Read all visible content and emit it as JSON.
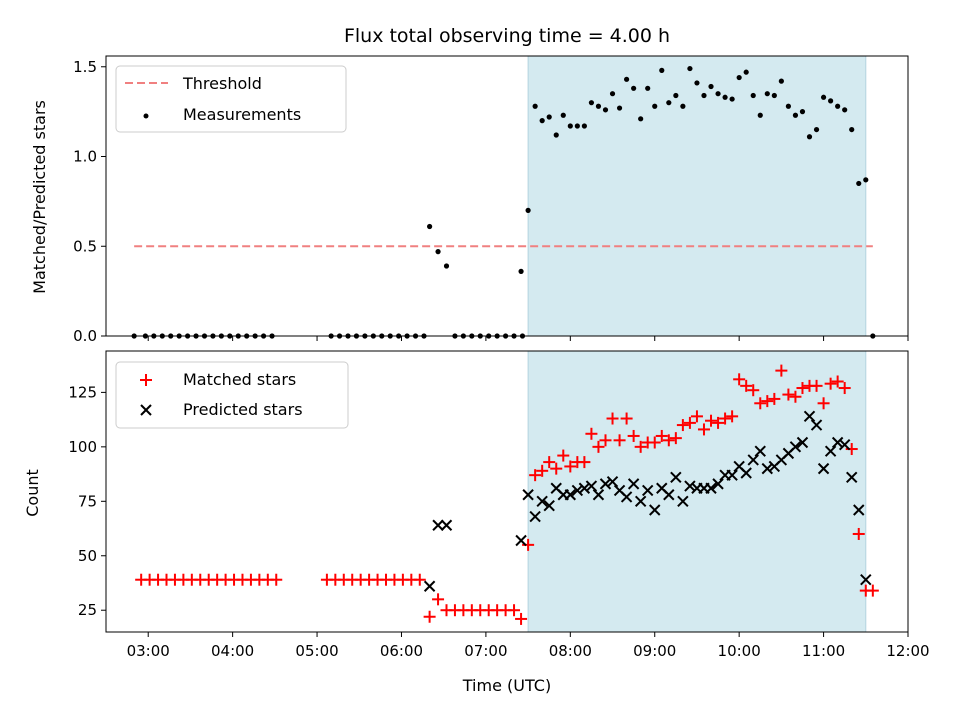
{
  "chart_data": [
    {
      "type": "scatter",
      "title": "Flux total observing time = 4.00 h",
      "ylabel": "Matched/Predicted stars",
      "xlabel": "",
      "xlim": [
        "02:30",
        "12:00"
      ],
      "ylim": [
        0,
        1.56
      ],
      "yticks": [
        "0.0",
        "0.5",
        "1.0",
        "1.5"
      ],
      "legend": "top-left",
      "shaded_span": [
        "07:30",
        "11:30"
      ],
      "colors": {
        "threshold": "#f08080",
        "measurements": "#000000",
        "span": "#d4eaf0"
      },
      "series": [
        {
          "name": "Threshold",
          "kind": "dashed-line",
          "x": [
            "02:50",
            "11:35"
          ],
          "y": [
            0.5,
            0.5
          ]
        },
        {
          "name": "Measurements",
          "kind": "points",
          "points": [
            [
              "02:50",
              0
            ],
            [
              "02:58",
              0
            ],
            [
              "03:04",
              0
            ],
            [
              "03:10",
              0
            ],
            [
              "03:16",
              0
            ],
            [
              "03:22",
              0
            ],
            [
              "03:28",
              0
            ],
            [
              "03:34",
              0
            ],
            [
              "03:40",
              0
            ],
            [
              "03:46",
              0
            ],
            [
              "03:52",
              0
            ],
            [
              "03:58",
              0
            ],
            [
              "04:04",
              0
            ],
            [
              "04:10",
              0
            ],
            [
              "04:16",
              0
            ],
            [
              "04:22",
              0
            ],
            [
              "04:28",
              0
            ],
            [
              "05:10",
              0
            ],
            [
              "05:16",
              0
            ],
            [
              "05:22",
              0
            ],
            [
              "05:28",
              0
            ],
            [
              "05:34",
              0
            ],
            [
              "05:40",
              0
            ],
            [
              "05:46",
              0
            ],
            [
              "05:52",
              0
            ],
            [
              "05:58",
              0
            ],
            [
              "06:04",
              0
            ],
            [
              "06:10",
              0
            ],
            [
              "06:16",
              0
            ],
            [
              "06:20",
              0.61
            ],
            [
              "06:26",
              0.47
            ],
            [
              "06:32",
              0.39
            ],
            [
              "06:38",
              0
            ],
            [
              "06:44",
              0
            ],
            [
              "06:50",
              0
            ],
            [
              "06:56",
              0
            ],
            [
              "07:02",
              0
            ],
            [
              "07:08",
              0
            ],
            [
              "07:14",
              0
            ],
            [
              "07:20",
              0
            ],
            [
              "07:26",
              0
            ],
            [
              "07:25",
              0.36
            ],
            [
              "07:30",
              0.7
            ],
            [
              "07:35",
              1.28
            ],
            [
              "07:40",
              1.2
            ],
            [
              "07:45",
              1.22
            ],
            [
              "07:50",
              1.12
            ],
            [
              "07:55",
              1.23
            ],
            [
              "08:00",
              1.17
            ],
            [
              "08:05",
              1.17
            ],
            [
              "08:10",
              1.17
            ],
            [
              "08:15",
              1.3
            ],
            [
              "08:20",
              1.28
            ],
            [
              "08:25",
              1.26
            ],
            [
              "08:30",
              1.35
            ],
            [
              "08:35",
              1.27
            ],
            [
              "08:40",
              1.43
            ],
            [
              "08:45",
              1.38
            ],
            [
              "08:50",
              1.21
            ],
            [
              "08:55",
              1.38
            ],
            [
              "09:00",
              1.28
            ],
            [
              "09:05",
              1.48
            ],
            [
              "09:10",
              1.3
            ],
            [
              "09:15",
              1.34
            ],
            [
              "09:20",
              1.28
            ],
            [
              "09:25",
              1.49
            ],
            [
              "09:30",
              1.41
            ],
            [
              "09:35",
              1.34
            ],
            [
              "09:40",
              1.39
            ],
            [
              "09:45",
              1.35
            ],
            [
              "09:50",
              1.33
            ],
            [
              "09:55",
              1.32
            ],
            [
              "10:00",
              1.44
            ],
            [
              "10:05",
              1.47
            ],
            [
              "10:10",
              1.34
            ],
            [
              "10:15",
              1.23
            ],
            [
              "10:20",
              1.35
            ],
            [
              "10:25",
              1.34
            ],
            [
              "10:30",
              1.42
            ],
            [
              "10:35",
              1.28
            ],
            [
              "10:40",
              1.23
            ],
            [
              "10:45",
              1.25
            ],
            [
              "10:50",
              1.11
            ],
            [
              "10:55",
              1.15
            ],
            [
              "11:00",
              1.33
            ],
            [
              "11:05",
              1.31
            ],
            [
              "11:10",
              1.28
            ],
            [
              "11:15",
              1.26
            ],
            [
              "11:20",
              1.15
            ],
            [
              "11:25",
              0.85
            ],
            [
              "11:30",
              0.87
            ],
            [
              "11:35",
              0
            ]
          ]
        }
      ]
    },
    {
      "type": "scatter",
      "title": "",
      "xlabel": "Time (UTC)",
      "ylabel": "Count",
      "xlim": [
        "02:30",
        "12:00"
      ],
      "ylim": [
        15,
        144
      ],
      "yticks": [
        "25",
        "50",
        "75",
        "100",
        "125"
      ],
      "xticks": [
        "03:00",
        "04:00",
        "05:00",
        "06:00",
        "07:00",
        "08:00",
        "09:00",
        "10:00",
        "11:00",
        "12:00"
      ],
      "legend": "top-left",
      "shaded_span": [
        "07:30",
        "11:30"
      ],
      "colors": {
        "matched": "#ff0000",
        "predicted": "#000000",
        "span": "#d4eaf0"
      },
      "series": [
        {
          "name": "Matched stars",
          "marker": "plus",
          "points": [
            [
              "02:55",
              39
            ],
            [
              "03:01",
              39
            ],
            [
              "03:07",
              39
            ],
            [
              "03:13",
              39
            ],
            [
              "03:19",
              39
            ],
            [
              "03:25",
              39
            ],
            [
              "03:31",
              39
            ],
            [
              "03:37",
              39
            ],
            [
              "03:43",
              39
            ],
            [
              "03:49",
              39
            ],
            [
              "03:55",
              39
            ],
            [
              "04:01",
              39
            ],
            [
              "04:07",
              39
            ],
            [
              "04:13",
              39
            ],
            [
              "04:19",
              39
            ],
            [
              "04:25",
              39
            ],
            [
              "04:31",
              39
            ],
            [
              "05:07",
              39
            ],
            [
              "05:13",
              39
            ],
            [
              "05:19",
              39
            ],
            [
              "05:25",
              39
            ],
            [
              "05:31",
              39
            ],
            [
              "05:37",
              39
            ],
            [
              "05:43",
              39
            ],
            [
              "05:49",
              39
            ],
            [
              "05:55",
              39
            ],
            [
              "06:01",
              39
            ],
            [
              "06:07",
              39
            ],
            [
              "06:13",
              39
            ],
            [
              "06:20",
              22
            ],
            [
              "06:26",
              30
            ],
            [
              "06:32",
              25
            ],
            [
              "06:38",
              25
            ],
            [
              "06:44",
              25
            ],
            [
              "06:50",
              25
            ],
            [
              "06:56",
              25
            ],
            [
              "07:02",
              25
            ],
            [
              "07:08",
              25
            ],
            [
              "07:14",
              25
            ],
            [
              "07:20",
              25
            ],
            [
              "07:25",
              21
            ],
            [
              "07:30",
              55
            ],
            [
              "07:35",
              87
            ],
            [
              "07:40",
              89
            ],
            [
              "07:45",
              93
            ],
            [
              "07:50",
              90
            ],
            [
              "07:55",
              96
            ],
            [
              "08:00",
              91
            ],
            [
              "08:05",
              93
            ],
            [
              "08:10",
              93
            ],
            [
              "08:15",
              106
            ],
            [
              "08:20",
              100
            ],
            [
              "08:25",
              103
            ],
            [
              "08:30",
              113
            ],
            [
              "08:35",
              103
            ],
            [
              "08:40",
              113
            ],
            [
              "08:45",
              105
            ],
            [
              "08:50",
              100
            ],
            [
              "08:55",
              102
            ],
            [
              "09:00",
              102
            ],
            [
              "09:05",
              105
            ],
            [
              "09:10",
              103
            ],
            [
              "09:15",
              104
            ],
            [
              "09:20",
              110
            ],
            [
              "09:25",
              111
            ],
            [
              "09:30",
              114
            ],
            [
              "09:35",
              108
            ],
            [
              "09:40",
              112
            ],
            [
              "09:45",
              111
            ],
            [
              "09:50",
              113
            ],
            [
              "09:55",
              114
            ],
            [
              "10:00",
              131
            ],
            [
              "10:05",
              128
            ],
            [
              "10:10",
              126
            ],
            [
              "10:15",
              120
            ],
            [
              "10:20",
              121
            ],
            [
              "10:25",
              122
            ],
            [
              "10:30",
              135
            ],
            [
              "10:35",
              124
            ],
            [
              "10:40",
              123
            ],
            [
              "10:45",
              127
            ],
            [
              "10:50",
              128
            ],
            [
              "10:55",
              128
            ],
            [
              "11:00",
              120
            ],
            [
              "11:05",
              129
            ],
            [
              "11:10",
              130
            ],
            [
              "11:15",
              127
            ],
            [
              "11:20",
              99
            ],
            [
              "11:25",
              60
            ],
            [
              "11:30",
              34
            ],
            [
              "11:35",
              34
            ]
          ]
        },
        {
          "name": "Predicted stars",
          "marker": "x",
          "points": [
            [
              "06:20",
              36
            ],
            [
              "06:26",
              64
            ],
            [
              "06:32",
              64
            ],
            [
              "07:25",
              57
            ],
            [
              "07:30",
              78
            ],
            [
              "07:35",
              68
            ],
            [
              "07:40",
              75
            ],
            [
              "07:45",
              73
            ],
            [
              "07:50",
              81
            ],
            [
              "07:55",
              78
            ],
            [
              "08:00",
              78
            ],
            [
              "08:05",
              80
            ],
            [
              "08:10",
              81
            ],
            [
              "08:15",
              82
            ],
            [
              "08:20",
              78
            ],
            [
              "08:25",
              83
            ],
            [
              "08:30",
              84
            ],
            [
              "08:35",
              80
            ],
            [
              "08:40",
              77
            ],
            [
              "08:45",
              83
            ],
            [
              "08:50",
              75
            ],
            [
              "08:55",
              80
            ],
            [
              "09:00",
              71
            ],
            [
              "09:05",
              81
            ],
            [
              "09:10",
              78
            ],
            [
              "09:15",
              86
            ],
            [
              "09:20",
              75
            ],
            [
              "09:25",
              82
            ],
            [
              "09:30",
              81
            ],
            [
              "09:35",
              81
            ],
            [
              "09:40",
              81
            ],
            [
              "09:45",
              83
            ],
            [
              "09:50",
              87
            ],
            [
              "09:55",
              87
            ],
            [
              "10:00",
              91
            ],
            [
              "10:05",
              88
            ],
            [
              "10:10",
              94
            ],
            [
              "10:15",
              98
            ],
            [
              "10:20",
              90
            ],
            [
              "10:25",
              91
            ],
            [
              "10:30",
              94
            ],
            [
              "10:35",
              97
            ],
            [
              "10:40",
              100
            ],
            [
              "10:45",
              102
            ],
            [
              "10:50",
              114
            ],
            [
              "10:55",
              110
            ],
            [
              "11:00",
              90
            ],
            [
              "11:05",
              98
            ],
            [
              "11:10",
              102
            ],
            [
              "11:15",
              101
            ],
            [
              "11:20",
              86
            ],
            [
              "11:25",
              71
            ],
            [
              "11:30",
              39
            ]
          ]
        }
      ]
    }
  ]
}
